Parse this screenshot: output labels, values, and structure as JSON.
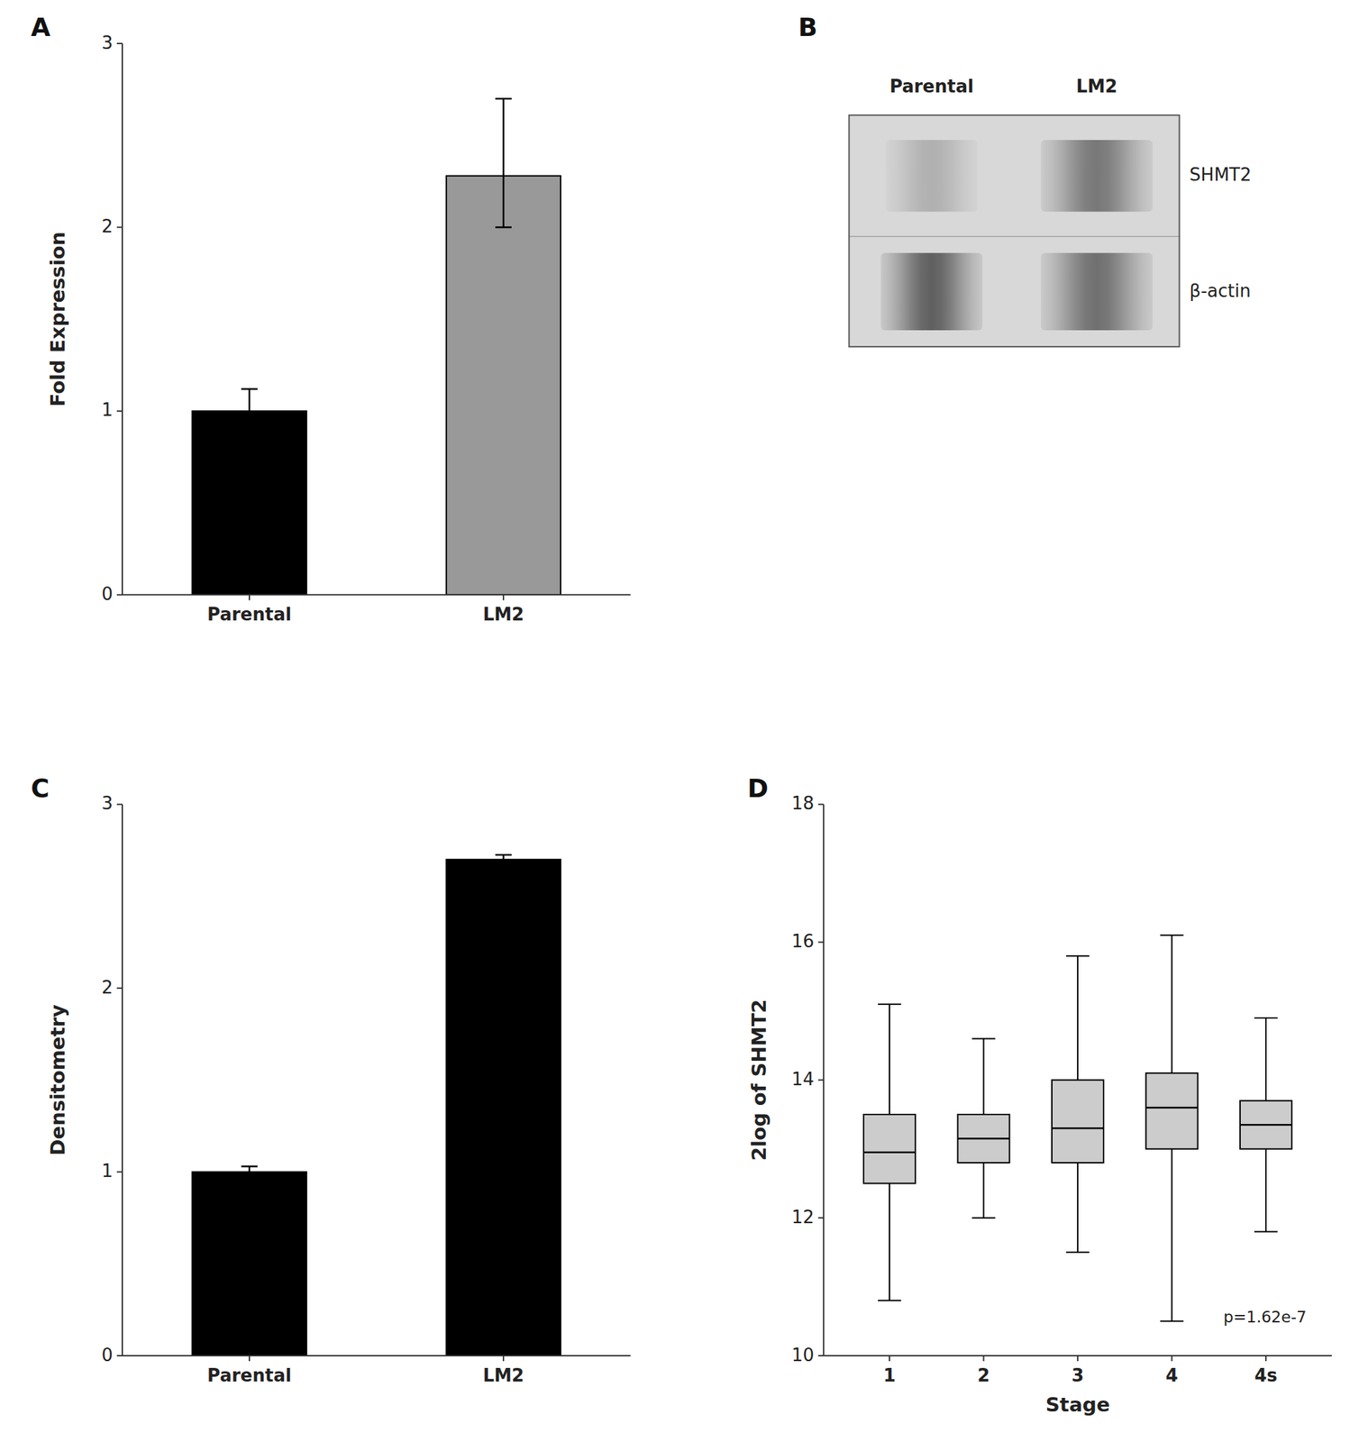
{
  "chart_data": [
    {
      "type": "bar",
      "title": "A",
      "categories": [
        "Parental",
        "LM2"
      ],
      "values": [
        1.0,
        2.28
      ],
      "error_lower": [
        0.12,
        0.28
      ],
      "error_upper": [
        0.12,
        0.42
      ],
      "colors": [
        "#000000",
        "#999999"
      ],
      "ylabel": "Fold Expression",
      "ylim": [
        0,
        3
      ],
      "yticks": [
        0,
        1,
        2,
        3
      ]
    },
    {
      "type": "blot",
      "title": "B",
      "categories": [
        "Parental",
        "LM2"
      ],
      "color": "#d8d8d8",
      "series": [
        {
          "name": "SHMT2",
          "colors": [
            "#b0b0b0",
            "#787878"
          ]
        },
        {
          "name": "β-actin",
          "colors": [
            "#606060",
            "#707070"
          ]
        }
      ]
    },
    {
      "type": "bar",
      "title": "C",
      "categories": [
        "Parental",
        "LM2"
      ],
      "values": [
        1.0,
        2.7
      ],
      "error_lower": [
        0.03,
        0.025
      ],
      "error_upper": [
        0.03,
        0.025
      ],
      "colors": [
        "#000000",
        "#000000"
      ],
      "ylabel": "Densitometry",
      "ylim": [
        0,
        3
      ],
      "yticks": [
        0,
        1,
        2,
        3
      ]
    },
    {
      "type": "box",
      "title": "D",
      "categories": [
        "1",
        "2",
        "3",
        "4",
        "4s"
      ],
      "whisker_low": [
        10.8,
        12.0,
        11.5,
        10.5,
        11.8
      ],
      "q1": [
        12.5,
        12.8,
        12.8,
        13.0,
        13.0
      ],
      "median": [
        12.95,
        13.15,
        13.3,
        13.6,
        13.35
      ],
      "q3": [
        13.5,
        13.5,
        14.0,
        14.1,
        13.7
      ],
      "whisker_high": [
        15.1,
        14.6,
        15.8,
        16.1,
        14.9
      ],
      "color": "#cccccc",
      "ylabel": "2log of SHMT2",
      "xlabel": "Stage",
      "ylim": [
        10,
        18
      ],
      "yticks": [
        10,
        12,
        14,
        16,
        18
      ],
      "annotation": "p=1.62e-7"
    }
  ]
}
